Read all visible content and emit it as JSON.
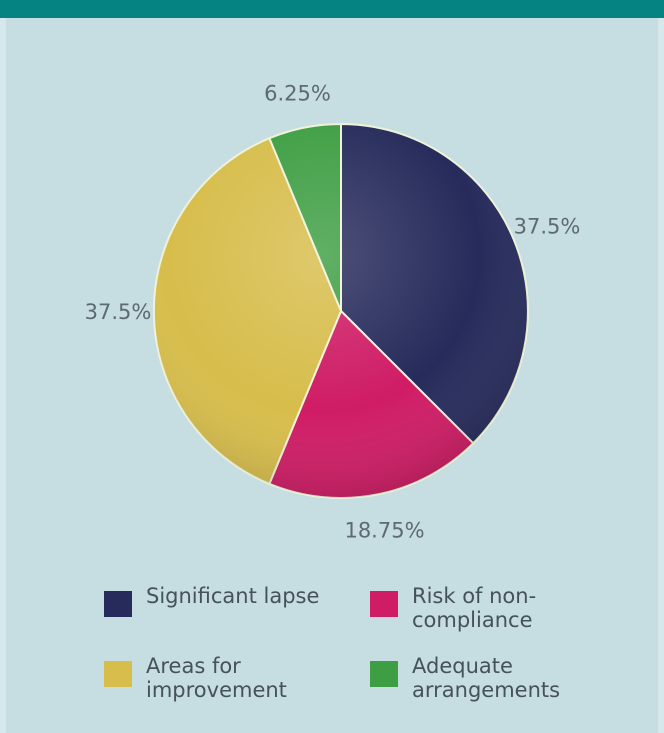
{
  "chart_data": {
    "type": "pie",
    "slices": [
      {
        "label": "Significant lapse",
        "value": 37.5,
        "display": "37.5%",
        "color": "#262b5b"
      },
      {
        "label": "Risk of non-compliance",
        "value": 18.75,
        "display": "18.75%",
        "color": "#cf1c65"
      },
      {
        "label": "Areas for improvement",
        "value": 37.5,
        "display": "37.5%",
        "color": "#d7bd4b"
      },
      {
        "label": "Adequate arrangements",
        "value": 6.25,
        "display": "6.25%",
        "color": "#3e9e43"
      }
    ],
    "legend_placement": "bottom"
  },
  "legend": {
    "items": [
      {
        "label": "Significant lapse",
        "color": "#262b5b"
      },
      {
        "label": "Risk of non-compliance",
        "color": "#cf1c65"
      },
      {
        "label": "Areas for improvement",
        "color": "#d7bd4b"
      },
      {
        "label": "Adequate arrangements",
        "color": "#3e9e43"
      }
    ]
  },
  "colors": {
    "header_bar": "#058282",
    "background": "#c6dde1"
  }
}
